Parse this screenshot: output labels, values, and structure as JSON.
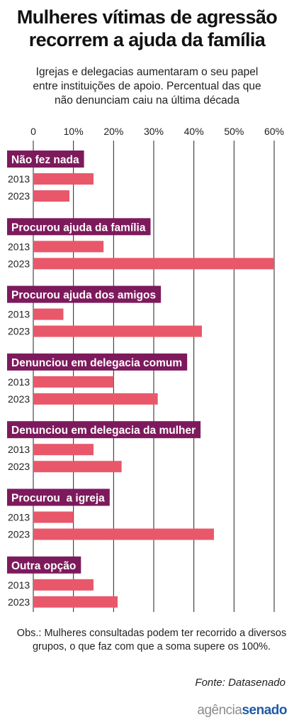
{
  "header": {
    "title_line1": "Mulheres vítimas de agressão",
    "title_line2": "recorrem a ajuda da família",
    "subtitle_line1": "Igrejas e delegacias aumentaram o seu papel",
    "subtitle_line2": "entre instituições de apoio. Percentual das que",
    "subtitle_line3": "não denunciam caiu na última década"
  },
  "chart_data": {
    "type": "bar",
    "orientation": "horizontal",
    "x_ticks": [
      "0",
      "10%",
      "20%",
      "30%",
      "40%",
      "50%",
      "60%"
    ],
    "xlim": [
      0,
      60
    ],
    "unit": "%",
    "grid": true,
    "categories": [
      "Não fez nada",
      "Procurou ajuda da família",
      "Procurou ajuda dos amigos",
      "Denunciou em delegacia comum",
      "Denunciou em delegacia da mulher",
      "Procurou  a igreja",
      "Outra opção"
    ],
    "series": [
      {
        "name": "2013",
        "values": [
          15,
          17.5,
          7.5,
          20,
          15,
          10,
          15
        ]
      },
      {
        "name": "2023",
        "values": [
          9,
          60,
          42,
          31,
          22,
          45,
          21
        ]
      }
    ]
  },
  "colors": {
    "category_label_bg": "#7d1a5c",
    "bar": "#e8586a",
    "grid": "#222222"
  },
  "footer": {
    "obs_line1": "Obs.: Mulheres consultadas podem ter recorrido a diversos",
    "obs_line2": "grupos, o que faz com que a soma supere os 100%.",
    "source": "Fonte: Datasenado",
    "logo_part1": "agência",
    "logo_part2": "senado"
  }
}
